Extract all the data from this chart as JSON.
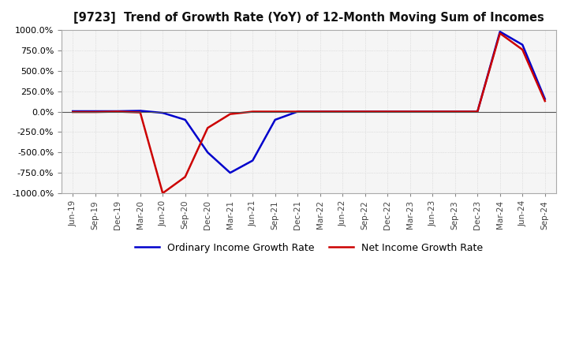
{
  "title": "[9723]  Trend of Growth Rate (YoY) of 12-Month Moving Sum of Incomes",
  "ylim": [
    -1000,
    1000
  ],
  "yticks": [
    1000.0,
    750.0,
    500.0,
    250.0,
    0.0,
    -250.0,
    -500.0,
    -750.0,
    -1000.0
  ],
  "background_color": "#ffffff",
  "plot_bg_color": "#f5f5f5",
  "grid_color": "#cccccc",
  "ordinary_color": "#0000cc",
  "net_color": "#cc0000",
  "legend_labels": [
    "Ordinary Income Growth Rate",
    "Net Income Growth Rate"
  ],
  "x_labels": [
    "Jun-19",
    "Sep-19",
    "Dec-19",
    "Mar-20",
    "Jun-20",
    "Sep-20",
    "Dec-20",
    "Mar-21",
    "Jun-21",
    "Sep-21",
    "Dec-21",
    "Mar-22",
    "Jun-22",
    "Sep-22",
    "Dec-22",
    "Mar-23",
    "Jun-23",
    "Sep-23",
    "Dec-23",
    "Mar-24",
    "Jun-24",
    "Sep-24"
  ],
  "ordinary_income": [
    5,
    5,
    5,
    10,
    -15,
    -100,
    -500,
    -750,
    -600,
    -100,
    0,
    0,
    0,
    0,
    0,
    0,
    0,
    0,
    0,
    980,
    820,
    155
  ],
  "net_income": [
    -5,
    -5,
    0,
    -10,
    -1000,
    -800,
    -200,
    -30,
    0,
    0,
    0,
    0,
    0,
    0,
    0,
    0,
    0,
    0,
    0,
    960,
    760,
    130
  ]
}
